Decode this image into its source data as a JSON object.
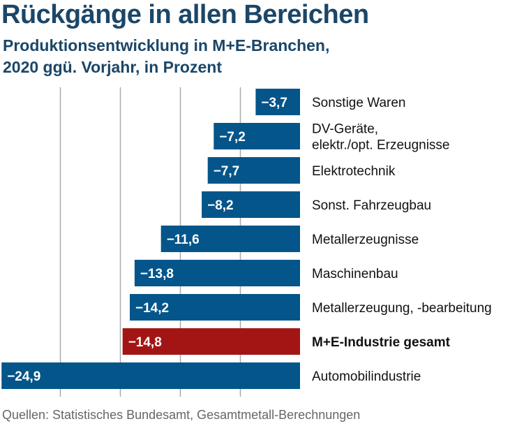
{
  "title": "Rückgänge in allen Bereichen",
  "subtitle_line1": "Produktionsentwicklung in M+E-Branchen,",
  "subtitle_line2": "2020 ggü. Vorjahr, in Prozent",
  "source": "Quellen: Statistisches Bundesamt, Gesamtmetall-Berechnungen",
  "colors": {
    "bar": "#04558a",
    "highlight": "#a31515",
    "title": "#1b4668",
    "grid": "#aaaaaa"
  },
  "chart_data": {
    "type": "bar",
    "orientation": "horizontal",
    "title": "Rückgänge in allen Bereichen",
    "xlabel": "",
    "ylabel": "",
    "xlim": [
      -25,
      0
    ],
    "grid": true,
    "grid_values": [
      -20,
      -15,
      -10,
      -5
    ],
    "categories": [
      [
        "Sonstige Waren"
      ],
      [
        "DV-Geräte,",
        "elektr./opt. Erzeugnisse"
      ],
      [
        "Elektrotechnik"
      ],
      [
        "Sonst. Fahrzeugbau"
      ],
      [
        "Metallerzeugnisse"
      ],
      [
        "Maschinenbau"
      ],
      [
        "Metallerzeugung, -bearbeitung"
      ],
      [
        "M+E-Industrie gesamt"
      ],
      [
        "Automobilindustrie"
      ]
    ],
    "values": [
      -3.7,
      -7.2,
      -7.7,
      -8.2,
      -11.6,
      -13.8,
      -14.2,
      -14.8,
      -24.9
    ],
    "labels": [
      "−3,7",
      "−7,2",
      "−7,7",
      "−8,2",
      "−11,6",
      "−13,8",
      "−14,2",
      "−14,8",
      "−24,9"
    ],
    "highlight_index": 7
  }
}
